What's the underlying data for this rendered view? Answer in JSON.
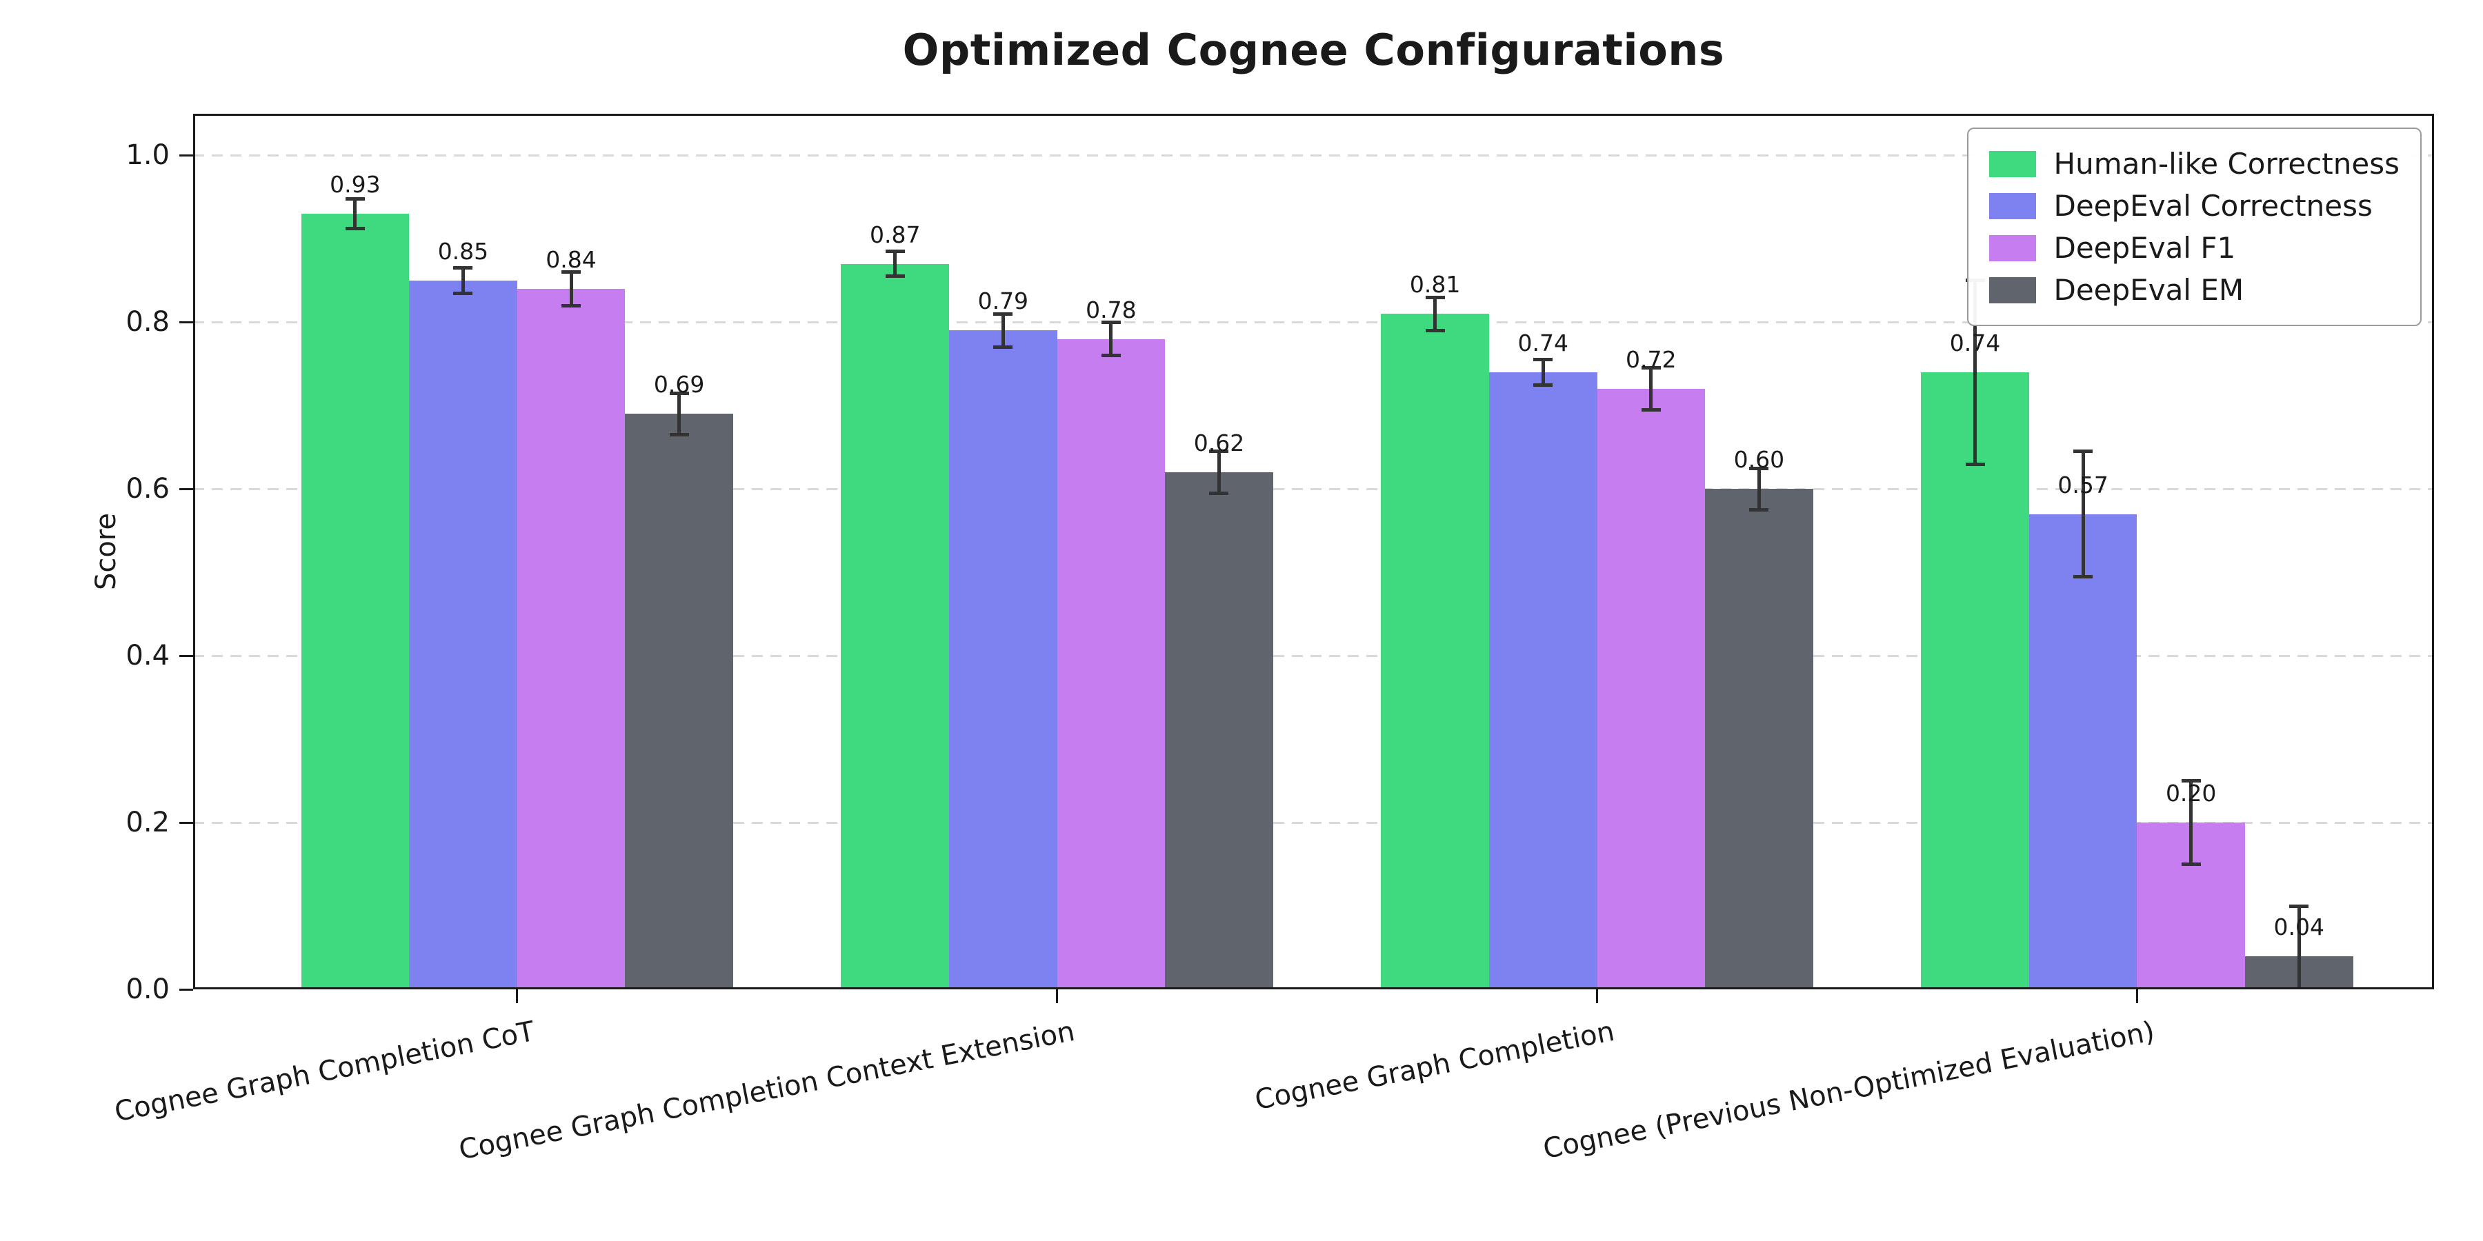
{
  "chart_data": {
    "type": "bar",
    "title": "Optimized Cognee Configurations",
    "xlabel": "",
    "ylabel": "Score",
    "ylim": [
      0,
      1.05
    ],
    "yticks": [
      0.0,
      0.2,
      0.4,
      0.6,
      0.8,
      1.0
    ],
    "grid": "horizontal-dashed",
    "grid_color": "#d9d9d9",
    "axis_color": "#1a1a1a",
    "error_bar_color": "#333333",
    "legend_position": "upper-right",
    "categories": [
      "Cognee Graph Completion CoT",
      "Cognee Graph Completion Context Extension",
      "Cognee Graph Completion",
      "Cognee (Previous Non-Optimized Evaluation)"
    ],
    "series": [
      {
        "name": "Human-like Correctness",
        "color": "#3fd97f",
        "values": [
          0.93,
          0.87,
          0.81,
          0.74
        ],
        "errors": [
          0.018,
          0.015,
          0.02,
          0.11
        ]
      },
      {
        "name": "DeepEval Correctness",
        "color": "#7e82f0",
        "values": [
          0.85,
          0.79,
          0.74,
          0.57
        ],
        "errors": [
          0.015,
          0.02,
          0.015,
          0.075
        ]
      },
      {
        "name": "DeepEval F1",
        "color": "#c57df0",
        "values": [
          0.84,
          0.78,
          0.72,
          0.2
        ],
        "errors": [
          0.02,
          0.02,
          0.025,
          0.05
        ]
      },
      {
        "name": "DeepEval EM",
        "color": "#60646c",
        "values": [
          0.69,
          0.62,
          0.6,
          0.04
        ],
        "errors": [
          0.025,
          0.025,
          0.025,
          0.06
        ]
      }
    ]
  }
}
